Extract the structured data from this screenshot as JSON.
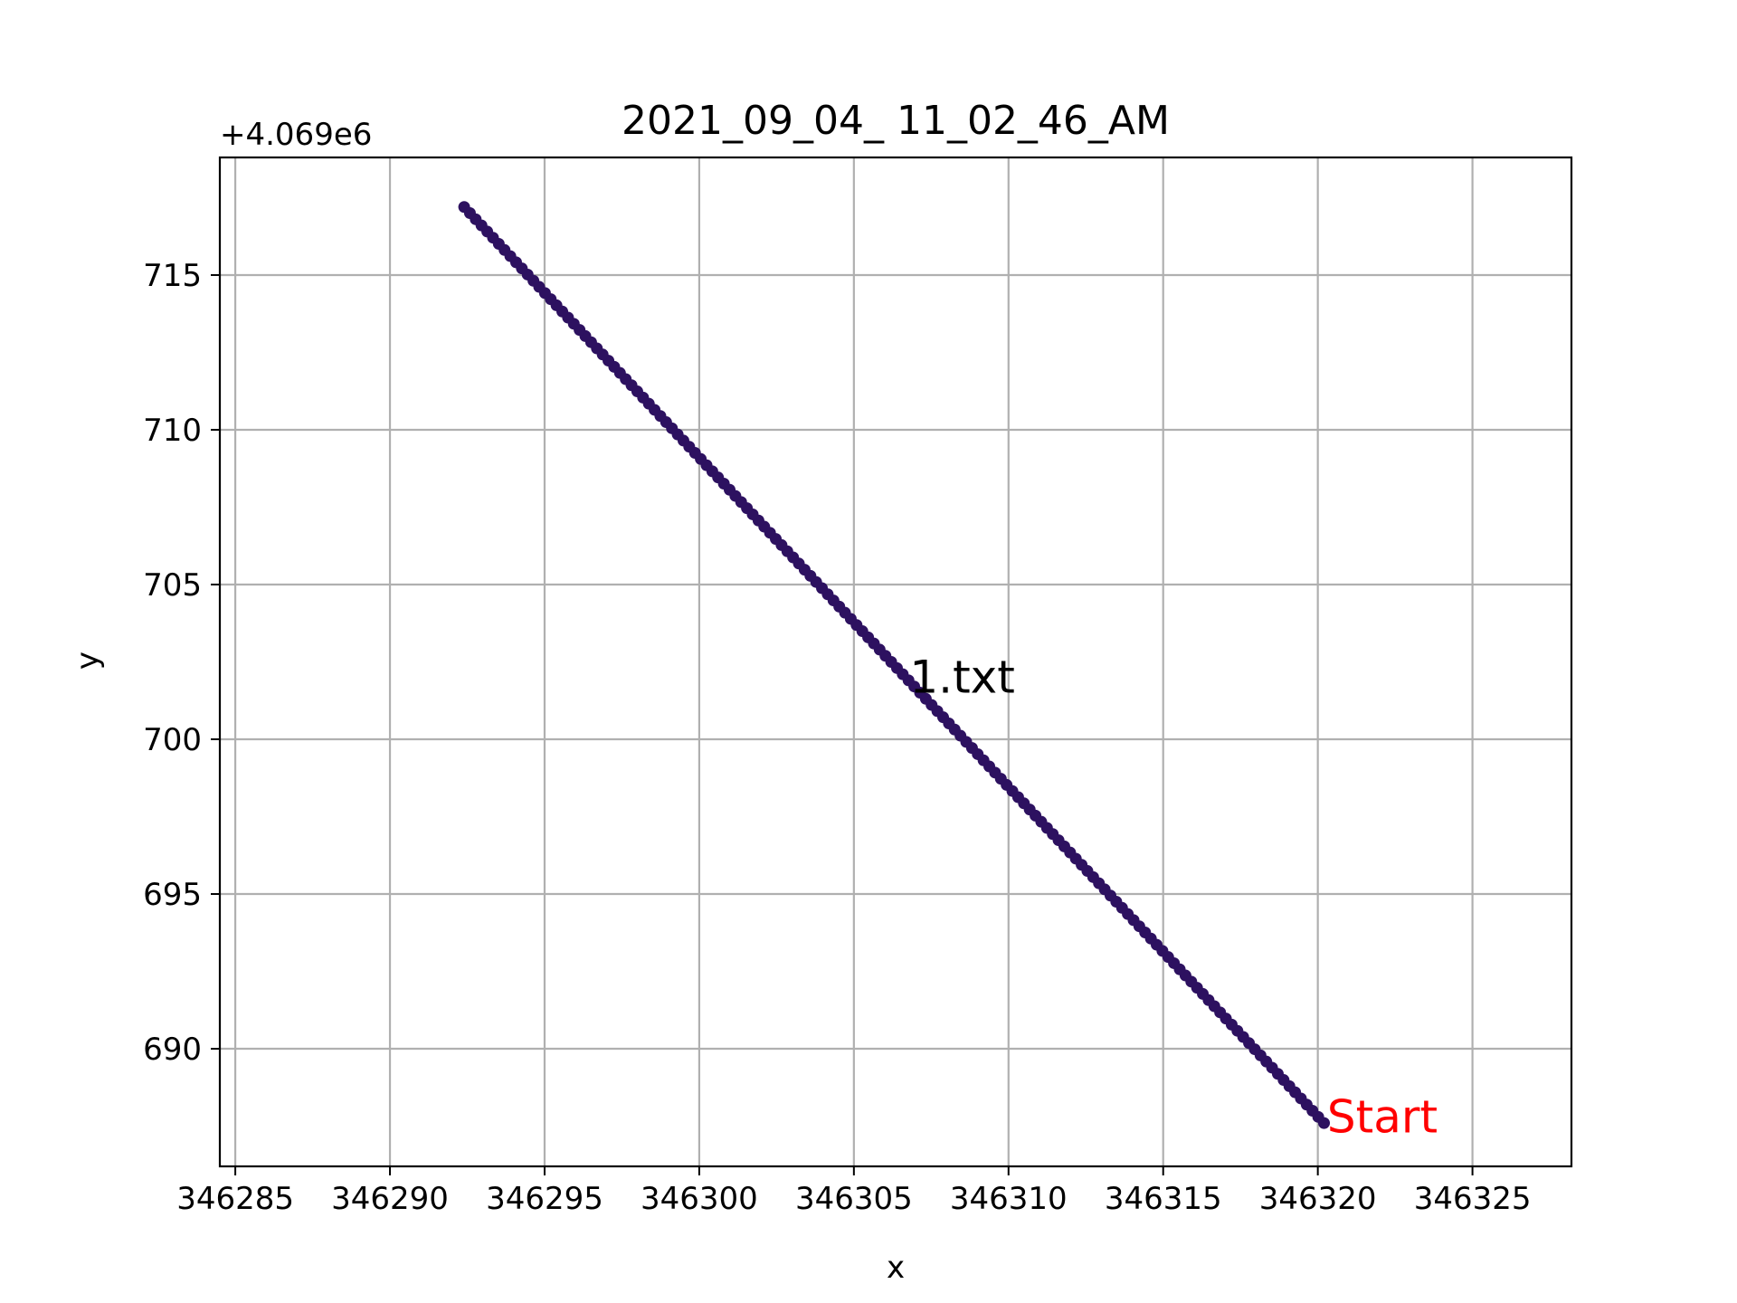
{
  "chart_data": {
    "type": "scatter",
    "title": "2021_09_04_ 11_02_46_AM",
    "xlabel": "x",
    "ylabel": "y",
    "y_offset_label": "+4.069e6",
    "y_offset": 4069000,
    "xlim": [
      346284.5,
      346328.2
    ],
    "ylim": [
      686.2,
      718.8
    ],
    "xticks": [
      346285,
      346290,
      346295,
      346300,
      346305,
      346310,
      346315,
      346320,
      346325
    ],
    "yticks": [
      690,
      695,
      700,
      705,
      710,
      715
    ],
    "grid": true,
    "series": [
      {
        "color": "#2d1160",
        "start": {
          "x": 346320.2,
          "y": 687.6
        },
        "end": {
          "x": 346292.4,
          "y": 717.2
        },
        "n_points": 150
      }
    ],
    "annotations": [
      {
        "text": "1.txt",
        "x": 346306.8,
        "y": 701.5,
        "color": "#000000"
      },
      {
        "text": "Start",
        "x": 346320.3,
        "y": 687.3,
        "color": "#ff0000"
      }
    ]
  }
}
